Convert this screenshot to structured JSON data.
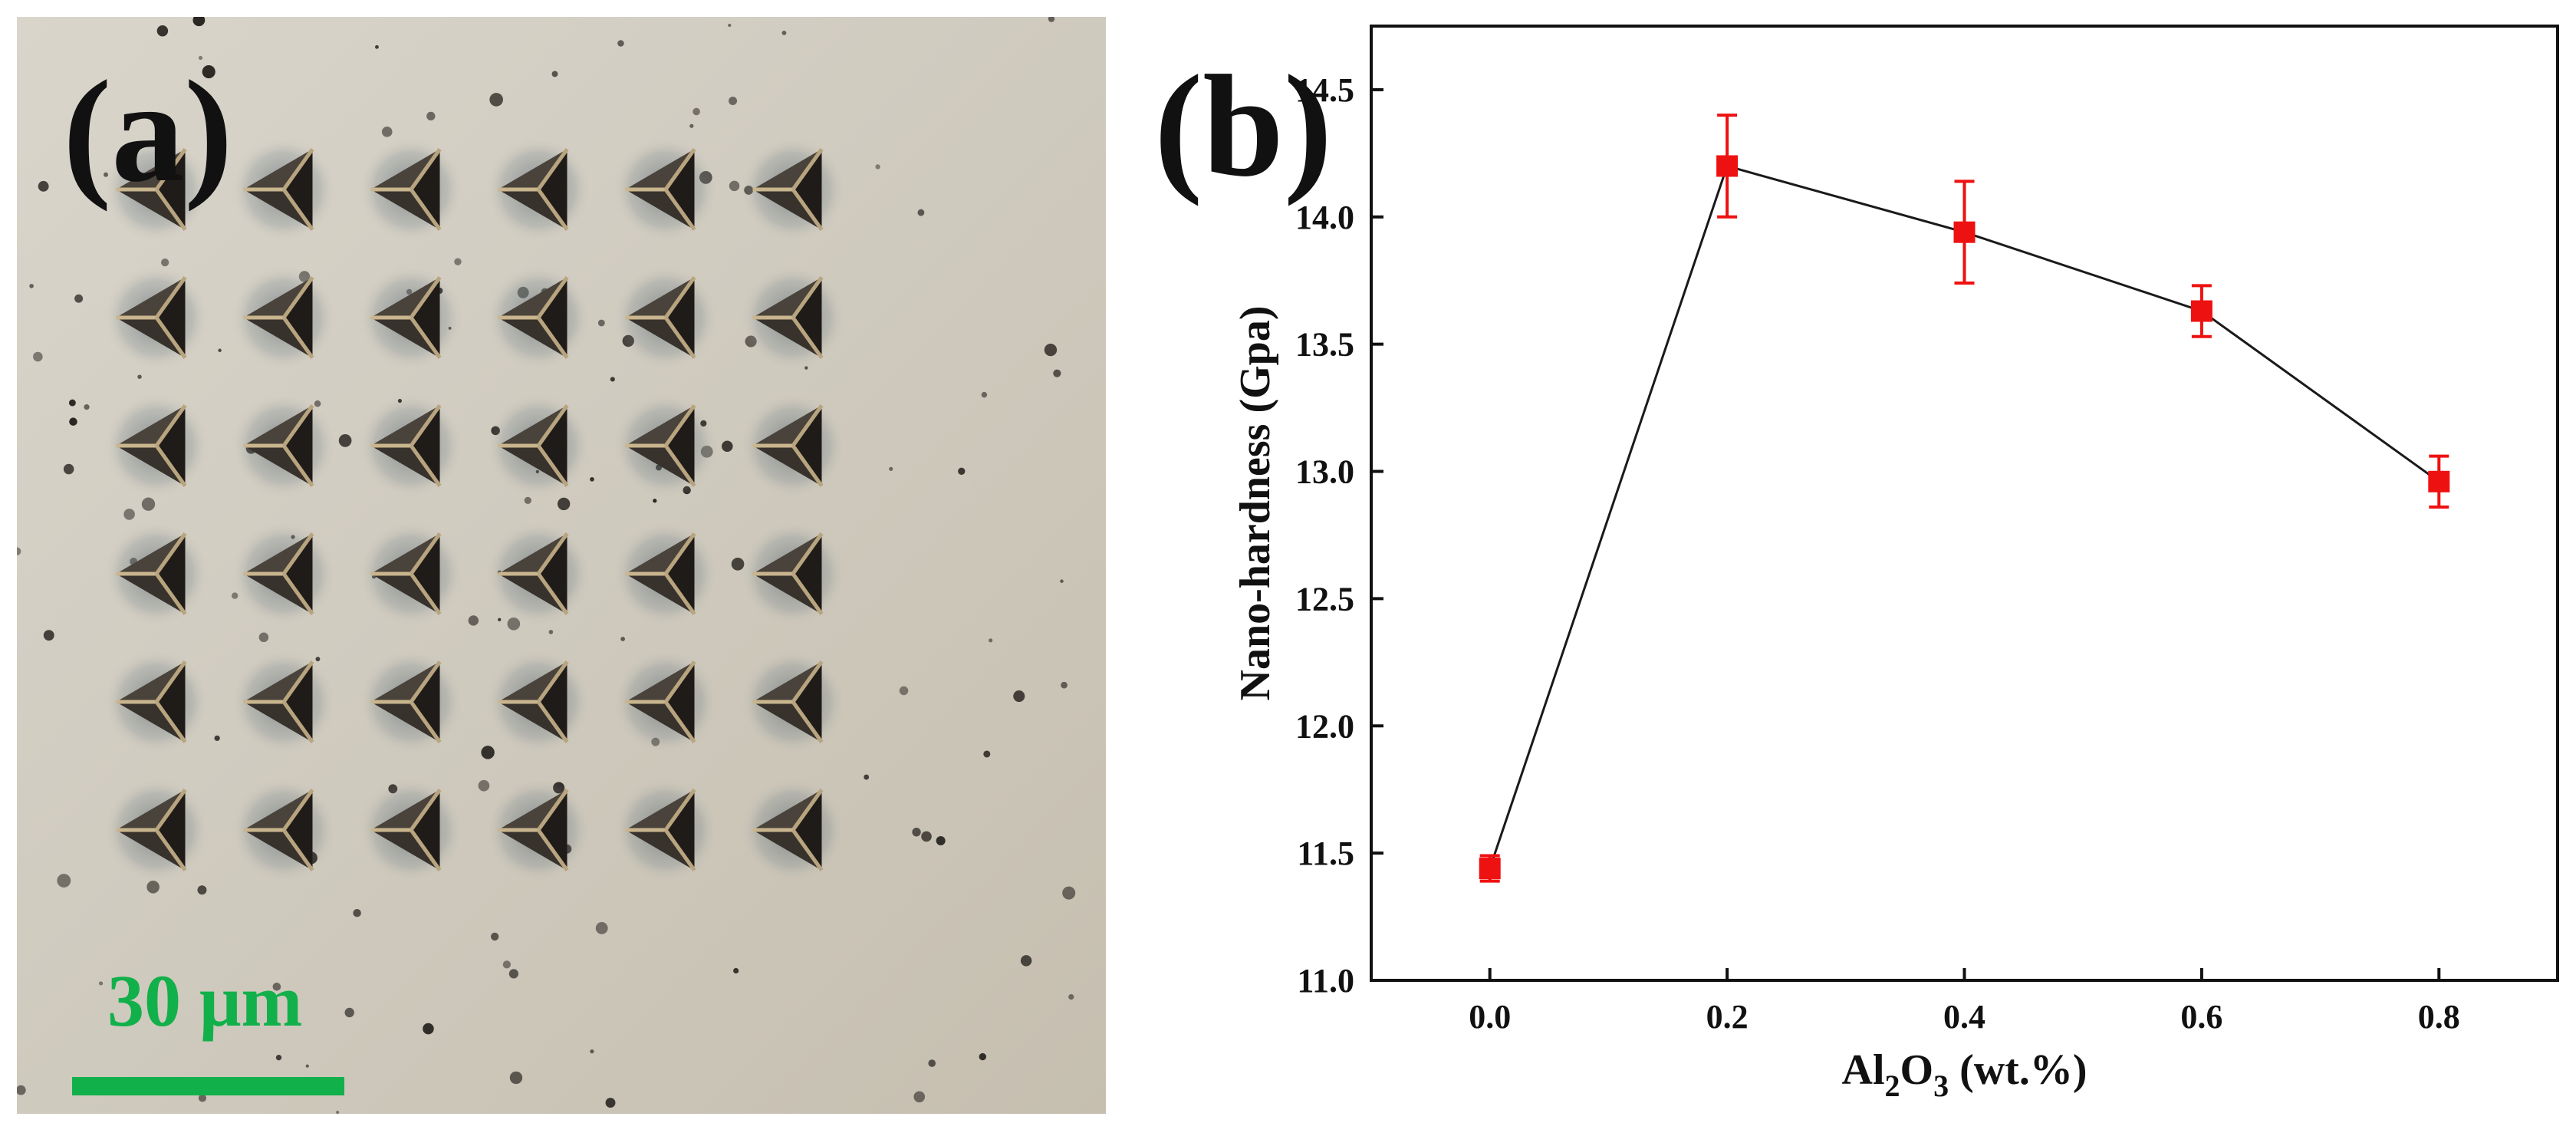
{
  "panel_a": {
    "label": "(a)",
    "scale_bar_text": "30 μm",
    "colors": {
      "scale_bar": "#12b04a",
      "background": "#d5d0c4",
      "indent": "#2a2622"
    },
    "indent_grid": {
      "rows": 6,
      "cols": 6
    }
  },
  "panel_b": {
    "label": "(b)"
  },
  "chart_data": {
    "type": "line",
    "title": "",
    "xlabel_main": "Al",
    "xlabel_sub1": "2",
    "xlabel_mid": "O",
    "xlabel_sub2": "3",
    "xlabel_tail": "  (wt.%)",
    "ylabel": "Nano-hardness  (Gpa)",
    "xlim": [
      -0.1,
      0.9
    ],
    "ylim": [
      11.0,
      14.75
    ],
    "xticks": [
      "0.0",
      "0.2",
      "0.4",
      "0.6",
      "0.8"
    ],
    "yticks": [
      "11.0",
      "11.5",
      "12.0",
      "12.5",
      "13.0",
      "13.5",
      "14.0",
      "14.5"
    ],
    "grid": false,
    "series": [
      {
        "x": [
          0.0,
          0.2,
          0.4,
          0.6,
          0.8
        ],
        "y": [
          11.44,
          14.2,
          13.94,
          13.63,
          12.96
        ],
        "yerr": [
          0.05,
          0.2,
          0.2,
          0.1,
          0.1
        ],
        "line_color": "#1a1a1a",
        "marker_color": "#ee1111"
      }
    ]
  }
}
